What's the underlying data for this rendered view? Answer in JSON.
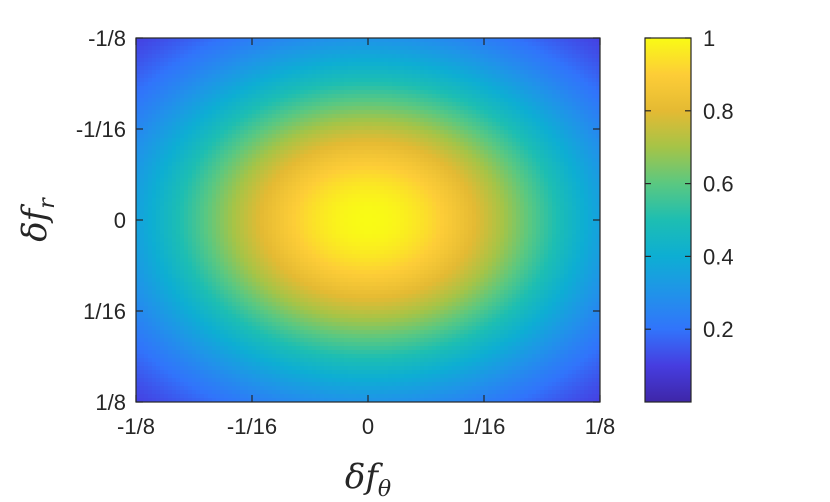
{
  "chart_data": {
    "type": "heatmap",
    "title": "",
    "xlabel": "δf_θ",
    "ylabel": "δf_r",
    "xlabel_parts": {
      "base": "δf",
      "sub": "θ"
    },
    "ylabel_parts": {
      "base": "δf",
      "sub": "r"
    },
    "x_range": [
      -0.125,
      0.125
    ],
    "y_range": [
      -0.125,
      0.125
    ],
    "y_direction": "down",
    "x_ticks": [
      {
        "value": -0.125,
        "label": "-1/8"
      },
      {
        "value": -0.0625,
        "label": "-1/16"
      },
      {
        "value": 0,
        "label": "0"
      },
      {
        "value": 0.0625,
        "label": "1/16"
      },
      {
        "value": 0.125,
        "label": "1/8"
      }
    ],
    "y_ticks": [
      {
        "value": -0.125,
        "label": "-1/8"
      },
      {
        "value": -0.0625,
        "label": "-1/16"
      },
      {
        "value": 0,
        "label": "0"
      },
      {
        "value": 0.0625,
        "label": "1/16"
      },
      {
        "value": 0.125,
        "label": "1/8"
      }
    ],
    "colorbar": {
      "range": [
        0,
        1
      ],
      "ticks": [
        {
          "value": 0.2,
          "label": "0.2"
        },
        {
          "value": 0.4,
          "label": "0.4"
        },
        {
          "value": 0.6,
          "label": "0.6"
        },
        {
          "value": 0.8,
          "label": "0.8"
        },
        {
          "value": 1,
          "label": "1"
        }
      ],
      "colormap": "parula"
    },
    "values_description_model": {
      "peak": {
        "x": 0,
        "y": 0,
        "value": 1.0
      },
      "value_at_x_edge_center": 0.35,
      "value_at_y_edge_center": 0.3,
      "value_at_corners": 0.05
    },
    "grid": false
  }
}
